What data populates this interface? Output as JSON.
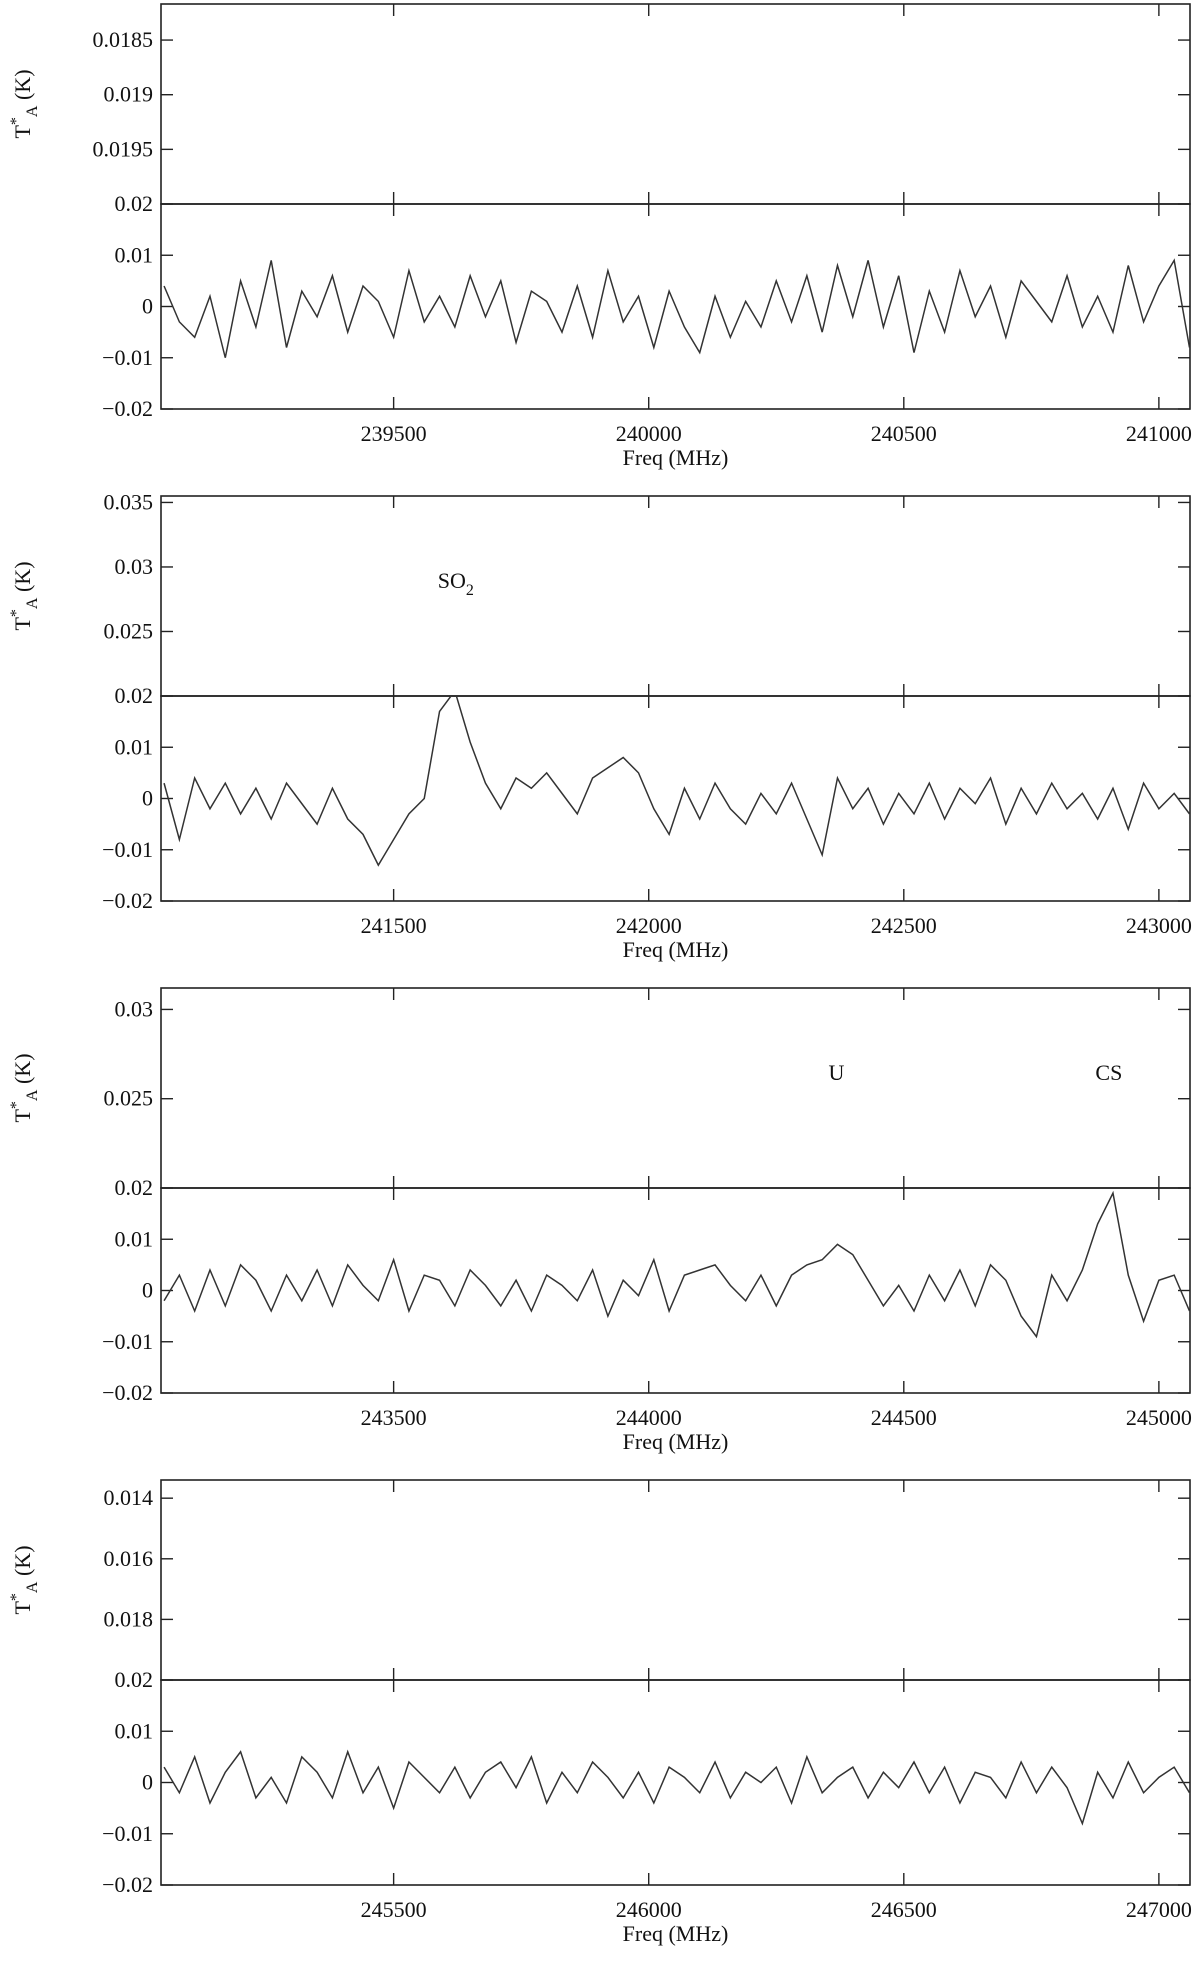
{
  "chart_data": [
    {
      "type": "line",
      "xlabel": "Freq (MHz)",
      "ylabel": {
        "text": "T",
        "sup": "*",
        "sub": "A",
        "unit": "(K)"
      },
      "xlim": [
        239044,
        241061
      ],
      "xticks": [
        239500,
        240000,
        240500,
        241000
      ],
      "ylim": [
        -0.02,
        0.02
      ],
      "yticks": [
        {
          "value": -0.02,
          "label": "−0.02"
        },
        {
          "value": -0.01,
          "label": "−0.01"
        },
        0,
        0.01
      ],
      "upper_ylim": [
        0.02,
        0.01817
      ],
      "upper_yticks": [
        0.0185,
        0.019,
        0.0195,
        0.02
      ],
      "annotations": [],
      "x": [
        239050,
        239080,
        239110,
        239140,
        239170,
        239200,
        239230,
        239260,
        239290,
        239320,
        239350,
        239380,
        239410,
        239440,
        239470,
        239500,
        239530,
        239560,
        239590,
        239620,
        239650,
        239680,
        239710,
        239740,
        239770,
        239800,
        239830,
        239860,
        239890,
        239920,
        239950,
        239980,
        240010,
        240040,
        240070,
        240100,
        240130,
        240160,
        240190,
        240220,
        240250,
        240280,
        240310,
        240340,
        240370,
        240400,
        240430,
        240460,
        240490,
        240520,
        240550,
        240580,
        240610,
        240640,
        240670,
        240700,
        240730,
        240760,
        240790,
        240820,
        240850,
        240880,
        240910,
        240940,
        240970,
        241000,
        241030,
        241060
      ],
      "series": [
        {
          "color": "#333333",
          "values": [
            0.004,
            -0.003,
            -0.006,
            0.002,
            -0.01,
            0.005,
            -0.004,
            0.009,
            -0.008,
            0.003,
            -0.002,
            0.006,
            -0.005,
            0.004,
            0.001,
            -0.006,
            0.007,
            -0.003,
            0.002,
            -0.004,
            0.006,
            -0.002,
            0.005,
            -0.007,
            0.003,
            0.001,
            -0.005,
            0.004,
            -0.006,
            0.007,
            -0.003,
            0.002,
            -0.008,
            0.003,
            -0.004,
            -0.009,
            0.002,
            -0.006,
            0.001,
            -0.004,
            0.005,
            -0.003,
            0.006,
            -0.005,
            0.008,
            -0.002,
            0.009,
            -0.004,
            0.006,
            -0.009,
            0.003,
            -0.005,
            0.007,
            -0.002,
            0.004,
            -0.006,
            0.005,
            0.001,
            -0.003,
            0.006,
            -0.004,
            0.002,
            -0.005,
            0.008,
            -0.003,
            0.004,
            0.009,
            -0.008
          ]
        }
      ]
    },
    {
      "type": "line",
      "xlabel": "Freq (MHz)",
      "ylabel": {
        "text": "T",
        "sup": "*",
        "sub": "A",
        "unit": "(K)"
      },
      "xlim": [
        241044,
        243061
      ],
      "xticks": [
        241500,
        242000,
        242500,
        243000
      ],
      "ylim": [
        -0.02,
        0.02
      ],
      "yticks": [
        {
          "value": -0.02,
          "label": "−0.02"
        },
        {
          "value": -0.01,
          "label": "−0.01"
        },
        0,
        0.01
      ],
      "upper_ylim": [
        0.02,
        0.0355
      ],
      "upper_yticks": [
        0.035,
        0.03,
        0.025,
        0.02
      ],
      "annotations": [
        {
          "text": "SO",
          "sub": "2",
          "x": 241622
        }
      ],
      "x": [
        241050,
        241080,
        241110,
        241140,
        241170,
        241200,
        241230,
        241260,
        241290,
        241320,
        241350,
        241380,
        241410,
        241440,
        241470,
        241500,
        241530,
        241560,
        241590,
        241620,
        241650,
        241680,
        241710,
        241740,
        241770,
        241800,
        241830,
        241860,
        241890,
        241920,
        241950,
        241980,
        242010,
        242040,
        242070,
        242100,
        242130,
        242160,
        242190,
        242220,
        242250,
        242280,
        242310,
        242340,
        242370,
        242400,
        242430,
        242460,
        242490,
        242520,
        242550,
        242580,
        242610,
        242640,
        242670,
        242700,
        242730,
        242760,
        242790,
        242820,
        242850,
        242880,
        242910,
        242940,
        242970,
        243000,
        243030,
        243060
      ],
      "series": [
        {
          "color": "#333333",
          "values": [
            0.003,
            -0.008,
            0.004,
            -0.002,
            0.003,
            -0.003,
            0.002,
            -0.004,
            0.003,
            -0.001,
            -0.005,
            0.002,
            -0.004,
            -0.007,
            -0.013,
            -0.008,
            -0.003,
            0.0,
            0.017,
            0.021,
            0.011,
            0.003,
            -0.002,
            0.004,
            0.002,
            0.005,
            0.001,
            -0.003,
            0.004,
            0.006,
            0.008,
            0.005,
            -0.002,
            -0.007,
            0.002,
            -0.004,
            0.003,
            -0.002,
            -0.005,
            0.001,
            -0.003,
            0.003,
            -0.004,
            -0.011,
            0.004,
            -0.002,
            0.002,
            -0.005,
            0.001,
            -0.003,
            0.003,
            -0.004,
            0.002,
            -0.001,
            0.004,
            -0.005,
            0.002,
            -0.003,
            0.003,
            -0.002,
            0.001,
            -0.004,
            0.002,
            -0.006,
            0.003,
            -0.002,
            0.001,
            -0.003
          ]
        }
      ]
    },
    {
      "type": "line",
      "xlabel": "Freq (MHz)",
      "ylabel": {
        "text": "T",
        "sup": "*",
        "sub": "A",
        "unit": "(K)"
      },
      "xlim": [
        243044,
        245061
      ],
      "xticks": [
        243500,
        244000,
        244500,
        245000
      ],
      "ylim": [
        -0.02,
        0.02
      ],
      "yticks": [
        {
          "value": -0.02,
          "label": "−0.02"
        },
        {
          "value": -0.01,
          "label": "−0.01"
        },
        0,
        0.01
      ],
      "upper_ylim": [
        0.02,
        0.0312
      ],
      "upper_yticks": [
        0.03,
        0.025,
        0.02
      ],
      "annotations": [
        {
          "text": "U",
          "x": 244368
        },
        {
          "text": "CS",
          "x": 244902
        }
      ],
      "x": [
        243050,
        243080,
        243110,
        243140,
        243170,
        243200,
        243230,
        243260,
        243290,
        243320,
        243350,
        243380,
        243410,
        243440,
        243470,
        243500,
        243530,
        243560,
        243590,
        243620,
        243650,
        243680,
        243710,
        243740,
        243770,
        243800,
        243830,
        243860,
        243890,
        243920,
        243950,
        243980,
        244010,
        244040,
        244070,
        244100,
        244130,
        244160,
        244190,
        244220,
        244250,
        244280,
        244310,
        244340,
        244370,
        244400,
        244430,
        244460,
        244490,
        244520,
        244550,
        244580,
        244610,
        244640,
        244670,
        244700,
        244730,
        244760,
        244790,
        244820,
        244850,
        244880,
        244910,
        244940,
        244970,
        245000,
        245030,
        245060
      ],
      "series": [
        {
          "color": "#333333",
          "values": [
            -0.002,
            0.003,
            -0.004,
            0.004,
            -0.003,
            0.005,
            0.002,
            -0.004,
            0.003,
            -0.002,
            0.004,
            -0.003,
            0.005,
            0.001,
            -0.002,
            0.006,
            -0.004,
            0.003,
            0.002,
            -0.003,
            0.004,
            0.001,
            -0.003,
            0.002,
            -0.004,
            0.003,
            0.001,
            -0.002,
            0.004,
            -0.005,
            0.002,
            -0.001,
            0.006,
            -0.004,
            0.003,
            0.004,
            0.005,
            0.001,
            -0.002,
            0.003,
            -0.003,
            0.003,
            0.005,
            0.006,
            0.009,
            0.007,
            0.002,
            -0.003,
            0.001,
            -0.004,
            0.003,
            -0.002,
            0.004,
            -0.003,
            0.005,
            0.002,
            -0.005,
            -0.009,
            0.003,
            -0.002,
            0.004,
            0.013,
            0.019,
            0.003,
            -0.006,
            0.002,
            0.003,
            -0.004
          ]
        }
      ]
    },
    {
      "type": "line",
      "xlabel": "Freq (MHz)",
      "ylabel": {
        "text": "T",
        "sup": "*",
        "sub": "A",
        "unit": "(K)"
      },
      "xlim": [
        245044,
        247061
      ],
      "xticks": [
        245500,
        246000,
        246500,
        247000
      ],
      "ylim": [
        -0.02,
        0.02
      ],
      "yticks": [
        {
          "value": -0.02,
          "label": "−0.02"
        },
        {
          "value": -0.01,
          "label": "−0.01"
        },
        0,
        0.01
      ],
      "upper_ylim": [
        0.02,
        0.0134
      ],
      "upper_yticks": [
        0.014,
        0.016,
        0.018,
        0.02
      ],
      "annotations": [],
      "x": [
        245050,
        245080,
        245110,
        245140,
        245170,
        245200,
        245230,
        245260,
        245290,
        245320,
        245350,
        245380,
        245410,
        245440,
        245470,
        245500,
        245530,
        245560,
        245590,
        245620,
        245650,
        245680,
        245710,
        245740,
        245770,
        245800,
        245830,
        245860,
        245890,
        245920,
        245950,
        245980,
        246010,
        246040,
        246070,
        246100,
        246130,
        246160,
        246190,
        246220,
        246250,
        246280,
        246310,
        246340,
        246370,
        246400,
        246430,
        246460,
        246490,
        246520,
        246550,
        246580,
        246610,
        246640,
        246670,
        246700,
        246730,
        246760,
        246790,
        246820,
        246850,
        246880,
        246910,
        246940,
        246970,
        247000,
        247030,
        247060
      ],
      "series": [
        {
          "color": "#333333",
          "values": [
            0.003,
            -0.002,
            0.005,
            -0.004,
            0.002,
            0.006,
            -0.003,
            0.001,
            -0.004,
            0.005,
            0.002,
            -0.003,
            0.006,
            -0.002,
            0.003,
            -0.005,
            0.004,
            0.001,
            -0.002,
            0.003,
            -0.003,
            0.002,
            0.004,
            -0.001,
            0.005,
            -0.004,
            0.002,
            -0.002,
            0.004,
            0.001,
            -0.003,
            0.002,
            -0.004,
            0.003,
            0.001,
            -0.002,
            0.004,
            -0.003,
            0.002,
            0.0,
            0.003,
            -0.004,
            0.005,
            -0.002,
            0.001,
            0.003,
            -0.003,
            0.002,
            -0.001,
            0.004,
            -0.002,
            0.003,
            -0.004,
            0.002,
            0.001,
            -0.003,
            0.004,
            -0.002,
            0.003,
            -0.001,
            -0.008,
            0.002,
            -0.003,
            0.004,
            -0.002,
            0.001,
            0.003,
            -0.002
          ]
        }
      ]
    }
  ]
}
